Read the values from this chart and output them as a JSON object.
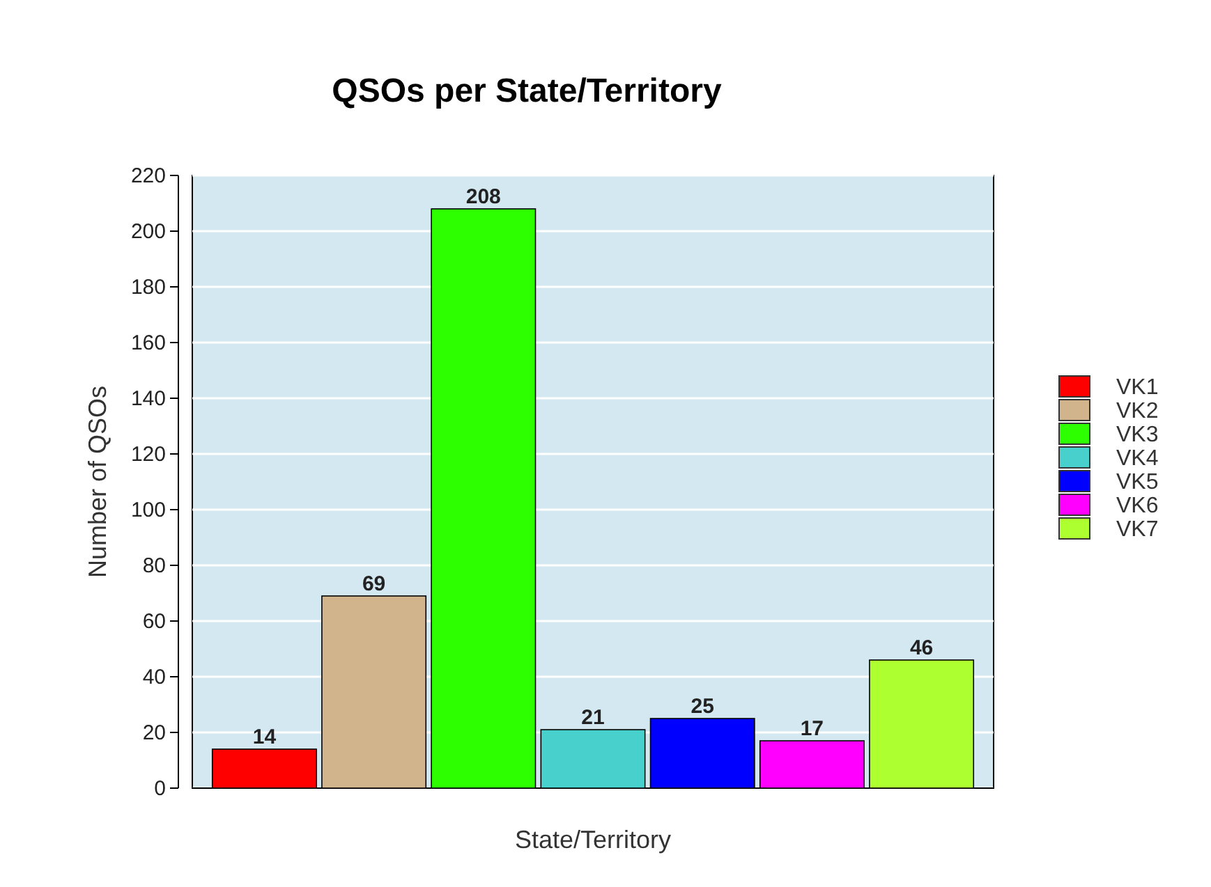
{
  "chart_data": {
    "type": "bar",
    "title": "QSOs per State/Territory",
    "xlabel": "State/Territory",
    "ylabel": "Number of QSOs",
    "categories": [
      null
    ],
    "series": [
      {
        "name": "VK1",
        "color": "#ff0000",
        "values": [
          14
        ]
      },
      {
        "name": "VK2",
        "color": "#d2b48c",
        "values": [
          69
        ]
      },
      {
        "name": "VK3",
        "color": "#2eff00",
        "values": [
          208
        ]
      },
      {
        "name": "VK4",
        "color": "#48d1cc",
        "values": [
          21
        ]
      },
      {
        "name": "VK5",
        "color": "#0000ff",
        "values": [
          25
        ]
      },
      {
        "name": "VK6",
        "color": "#ff00ff",
        "values": [
          17
        ]
      },
      {
        "name": "VK7",
        "color": "#adff2f",
        "values": [
          46
        ]
      }
    ],
    "ylim": [
      0,
      220
    ],
    "yticks": [
      0,
      20,
      40,
      60,
      80,
      100,
      120,
      140,
      160,
      180,
      200,
      220
    ],
    "grid": "y",
    "legend": "right",
    "data_labels": true
  }
}
